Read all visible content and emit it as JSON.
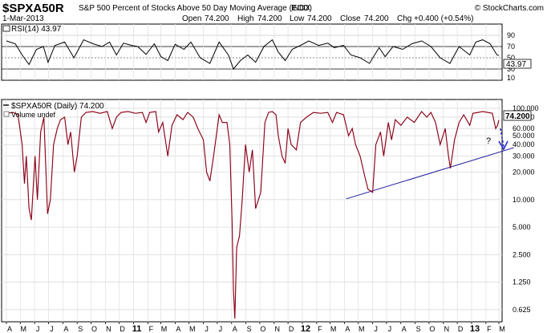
{
  "header": {
    "symbol": "$SPXA50R",
    "description": "S&P 500 Percent of Stocks Above 50 Day Moving Average (EOD)",
    "exchange": "INDX",
    "date": "1-Mar-2013",
    "watermark": "© StockCharts.com",
    "ohlc": {
      "open_label": "Open",
      "open": "74.200",
      "high_label": "High",
      "high": "74.200",
      "low_label": "Low",
      "low": "74.200",
      "close_label": "Close",
      "close": "74.200",
      "chg_label": "Chg",
      "chg": "+0.400 (+0.54%)"
    }
  },
  "rsi_panel": {
    "legend": "RSI(14) 43.97",
    "current_value": "43.97",
    "ticks": [
      "90",
      "70",
      "50",
      "30",
      "10"
    ]
  },
  "price_panel": {
    "legend": "$SPXA50R (Daily) 74.200",
    "volume_legend": "Volume undef",
    "current_value": "74.200",
    "annotation_question": "?",
    "ticks": [
      "100.000",
      "80.000",
      "60.000",
      "50.000",
      "40.000",
      "30.000",
      "20.000",
      "10.000",
      "5.000",
      "2.500",
      "1.250",
      "0.625"
    ]
  },
  "x_axis": {
    "months": [
      "A",
      "M",
      "J",
      "J",
      "A",
      "S",
      "O",
      "N",
      "D",
      "11",
      "F",
      "M",
      "A",
      "M",
      "J",
      "J",
      "A",
      "S",
      "O",
      "N",
      "D",
      "12",
      "F",
      "M",
      "A",
      "M",
      "J",
      "J",
      "A",
      "S",
      "O",
      "N",
      "D",
      "13",
      "F",
      "M"
    ]
  },
  "colors": {
    "price_line": "#c8102e",
    "rsi_line": "#000000",
    "trendline": "#1a1aa0",
    "annotation": "#2a2acc",
    "grid": "#d4d4d4",
    "border": "#000000"
  },
  "chart_data": {
    "type": "line",
    "y_scale": "log",
    "ylim": [
      0.5,
      115
    ],
    "x_range": [
      "2010-04-01",
      "2013-03-01"
    ],
    "series": [
      {
        "name": "$SPXA50R (Daily)",
        "points": [
          [
            "2010-04-01",
            88
          ],
          [
            "2010-04-15",
            90
          ],
          [
            "2010-04-26",
            85
          ],
          [
            "2010-05-05",
            40
          ],
          [
            "2010-05-10",
            15
          ],
          [
            "2010-05-14",
            30
          ],
          [
            "2010-05-20",
            8
          ],
          [
            "2010-05-25",
            6
          ],
          [
            "2010-06-02",
            30
          ],
          [
            "2010-06-07",
            10
          ],
          [
            "2010-06-14",
            55
          ],
          [
            "2010-06-21",
            80
          ],
          [
            "2010-06-29",
            7
          ],
          [
            "2010-07-05",
            10
          ],
          [
            "2010-07-12",
            40
          ],
          [
            "2010-07-20",
            60
          ],
          [
            "2010-07-27",
            75
          ],
          [
            "2010-08-05",
            80
          ],
          [
            "2010-08-12",
            40
          ],
          [
            "2010-08-18",
            55
          ],
          [
            "2010-08-26",
            20
          ],
          [
            "2010-09-01",
            30
          ],
          [
            "2010-09-10",
            80
          ],
          [
            "2010-09-20",
            90
          ],
          [
            "2010-10-05",
            92
          ],
          [
            "2010-10-20",
            88
          ],
          [
            "2010-11-05",
            92
          ],
          [
            "2010-11-16",
            60
          ],
          [
            "2010-11-25",
            80
          ],
          [
            "2010-12-05",
            90
          ],
          [
            "2010-12-20",
            92
          ],
          [
            "2011-01-05",
            88
          ],
          [
            "2011-01-20",
            90
          ],
          [
            "2011-01-28",
            70
          ],
          [
            "2011-02-05",
            90
          ],
          [
            "2011-02-18",
            92
          ],
          [
            "2011-02-24",
            55
          ],
          [
            "2011-03-05",
            70
          ],
          [
            "2011-03-16",
            30
          ],
          [
            "2011-03-25",
            65
          ],
          [
            "2011-04-05",
            85
          ],
          [
            "2011-04-18",
            75
          ],
          [
            "2011-04-28",
            90
          ],
          [
            "2011-05-10",
            80
          ],
          [
            "2011-05-20",
            60
          ],
          [
            "2011-06-01",
            45
          ],
          [
            "2011-06-08",
            20
          ],
          [
            "2011-06-15",
            16
          ],
          [
            "2011-06-23",
            30
          ],
          [
            "2011-07-05",
            85
          ],
          [
            "2011-07-12",
            70
          ],
          [
            "2011-07-22",
            70
          ],
          [
            "2011-07-28",
            40
          ],
          [
            "2011-08-02",
            6
          ],
          [
            "2011-08-05",
            1.0
          ],
          [
            "2011-08-08",
            0.5
          ],
          [
            "2011-08-12",
            3
          ],
          [
            "2011-08-18",
            4
          ],
          [
            "2011-08-24",
            10
          ],
          [
            "2011-08-31",
            40
          ],
          [
            "2011-09-08",
            20
          ],
          [
            "2011-09-15",
            35
          ],
          [
            "2011-09-22",
            8
          ],
          [
            "2011-10-03",
            12
          ],
          [
            "2011-10-12",
            70
          ],
          [
            "2011-10-20",
            90
          ],
          [
            "2011-10-28",
            92
          ],
          [
            "2011-11-05",
            85
          ],
          [
            "2011-11-10",
            50
          ],
          [
            "2011-11-18",
            30
          ],
          [
            "2011-11-25",
            25
          ],
          [
            "2011-12-01",
            60
          ],
          [
            "2011-12-08",
            40
          ],
          [
            "2011-12-19",
            35
          ],
          [
            "2011-12-28",
            70
          ],
          [
            "2012-01-10",
            80
          ],
          [
            "2012-01-25",
            90
          ],
          [
            "2012-02-10",
            88
          ],
          [
            "2012-02-25",
            90
          ],
          [
            "2012-03-06",
            70
          ],
          [
            "2012-03-15",
            90
          ],
          [
            "2012-03-30",
            85
          ],
          [
            "2012-04-10",
            50
          ],
          [
            "2012-04-18",
            60
          ],
          [
            "2012-04-25",
            40
          ],
          [
            "2012-05-05",
            30
          ],
          [
            "2012-05-15",
            18
          ],
          [
            "2012-05-22",
            13
          ],
          [
            "2012-06-01",
            12
          ],
          [
            "2012-06-08",
            40
          ],
          [
            "2012-06-18",
            55
          ],
          [
            "2012-06-25",
            30
          ],
          [
            "2012-07-05",
            70
          ],
          [
            "2012-07-12",
            45
          ],
          [
            "2012-07-20",
            75
          ],
          [
            "2012-08-01",
            65
          ],
          [
            "2012-08-15",
            80
          ],
          [
            "2012-08-30",
            70
          ],
          [
            "2012-09-15",
            92
          ],
          [
            "2012-09-26",
            80
          ],
          [
            "2012-10-05",
            90
          ],
          [
            "2012-10-15",
            70
          ],
          [
            "2012-10-25",
            40
          ],
          [
            "2012-11-05",
            60
          ],
          [
            "2012-11-12",
            30
          ],
          [
            "2012-11-16",
            22
          ],
          [
            "2012-11-25",
            45
          ],
          [
            "2012-12-05",
            70
          ],
          [
            "2012-12-15",
            85
          ],
          [
            "2012-12-28",
            65
          ],
          [
            "2013-01-04",
            88
          ],
          [
            "2013-01-15",
            90
          ],
          [
            "2013-01-25",
            92
          ],
          [
            "2013-02-05",
            90
          ],
          [
            "2013-02-15",
            88
          ],
          [
            "2013-02-22",
            60
          ],
          [
            "2013-02-26",
            65
          ],
          [
            "2013-03-01",
            74.2
          ]
        ]
      },
      {
        "name": "RSI(14)",
        "ylim": [
          0,
          100
        ],
        "points": [
          [
            "2010-04-01",
            70
          ],
          [
            "2010-04-20",
            65
          ],
          [
            "2010-05-05",
            45
          ],
          [
            "2010-05-20",
            28
          ],
          [
            "2010-06-05",
            55
          ],
          [
            "2010-06-20",
            60
          ],
          [
            "2010-06-30",
            32
          ],
          [
            "2010-07-15",
            62
          ],
          [
            "2010-08-05",
            68
          ],
          [
            "2010-08-25",
            40
          ],
          [
            "2010-09-15",
            72
          ],
          [
            "2010-10-05",
            65
          ],
          [
            "2010-10-25",
            60
          ],
          [
            "2010-11-10",
            68
          ],
          [
            "2010-11-25",
            45
          ],
          [
            "2010-12-10",
            66
          ],
          [
            "2010-12-28",
            62
          ],
          [
            "2011-01-10",
            60
          ],
          [
            "2011-01-28",
            46
          ],
          [
            "2011-02-15",
            65
          ],
          [
            "2011-03-01",
            42
          ],
          [
            "2011-03-16",
            35
          ],
          [
            "2011-04-01",
            64
          ],
          [
            "2011-04-20",
            55
          ],
          [
            "2011-05-05",
            68
          ],
          [
            "2011-05-25",
            40
          ],
          [
            "2011-06-15",
            30
          ],
          [
            "2011-07-05",
            68
          ],
          [
            "2011-07-25",
            45
          ],
          [
            "2011-08-05",
            20
          ],
          [
            "2011-08-20",
            35
          ],
          [
            "2011-09-05",
            45
          ],
          [
            "2011-09-22",
            32
          ],
          [
            "2011-10-10",
            60
          ],
          [
            "2011-10-28",
            72
          ],
          [
            "2011-11-10",
            50
          ],
          [
            "2011-11-25",
            35
          ],
          [
            "2011-12-10",
            55
          ],
          [
            "2011-12-28",
            62
          ],
          [
            "2012-01-15",
            70
          ],
          [
            "2012-02-05",
            62
          ],
          [
            "2012-02-25",
            66
          ],
          [
            "2012-03-10",
            58
          ],
          [
            "2012-03-30",
            62
          ],
          [
            "2012-04-15",
            45
          ],
          [
            "2012-05-05",
            40
          ],
          [
            "2012-05-25",
            30
          ],
          [
            "2012-06-15",
            58
          ],
          [
            "2012-06-28",
            42
          ],
          [
            "2012-07-15",
            60
          ],
          [
            "2012-08-05",
            55
          ],
          [
            "2012-08-25",
            65
          ],
          [
            "2012-09-15",
            70
          ],
          [
            "2012-10-05",
            60
          ],
          [
            "2012-10-25",
            40
          ],
          [
            "2012-11-15",
            30
          ],
          [
            "2012-12-05",
            60
          ],
          [
            "2012-12-28",
            45
          ],
          [
            "2013-01-10",
            68
          ],
          [
            "2013-01-25",
            72
          ],
          [
            "2013-02-10",
            65
          ],
          [
            "2013-02-25",
            45
          ],
          [
            "2013-03-01",
            43.97
          ]
        ]
      }
    ],
    "trendline": [
      [
        "2012-04-05",
        10.2
      ],
      [
        "2013-03-01",
        33
      ]
    ],
    "annotation_arrow": {
      "x": "2013-02-25",
      "y_from": 60,
      "y_to": 45
    }
  }
}
